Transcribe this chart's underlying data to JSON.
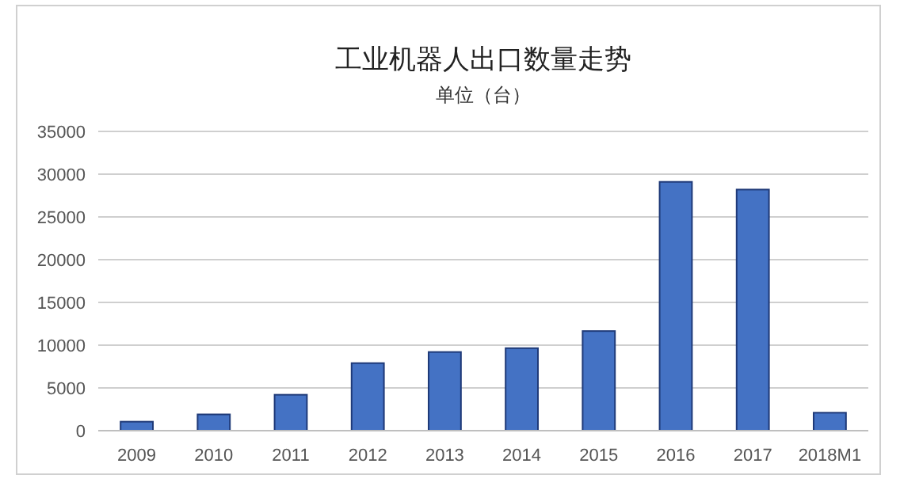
{
  "chart_data": {
    "type": "bar",
    "title": "工业机器人出口数量走势",
    "subtitle": "单位（台）",
    "categories": [
      "2009",
      "2010",
      "2011",
      "2012",
      "2013",
      "2014",
      "2015",
      "2016",
      "2017",
      "2018M1"
    ],
    "values": [
      1050,
      1900,
      4200,
      7900,
      9200,
      9650,
      11650,
      29100,
      28200,
      2100
    ],
    "color": "#4472c4",
    "ylim": [
      0,
      35000
    ],
    "yticks": [
      0,
      5000,
      10000,
      15000,
      20000,
      25000,
      30000,
      35000
    ],
    "grid": "y"
  }
}
